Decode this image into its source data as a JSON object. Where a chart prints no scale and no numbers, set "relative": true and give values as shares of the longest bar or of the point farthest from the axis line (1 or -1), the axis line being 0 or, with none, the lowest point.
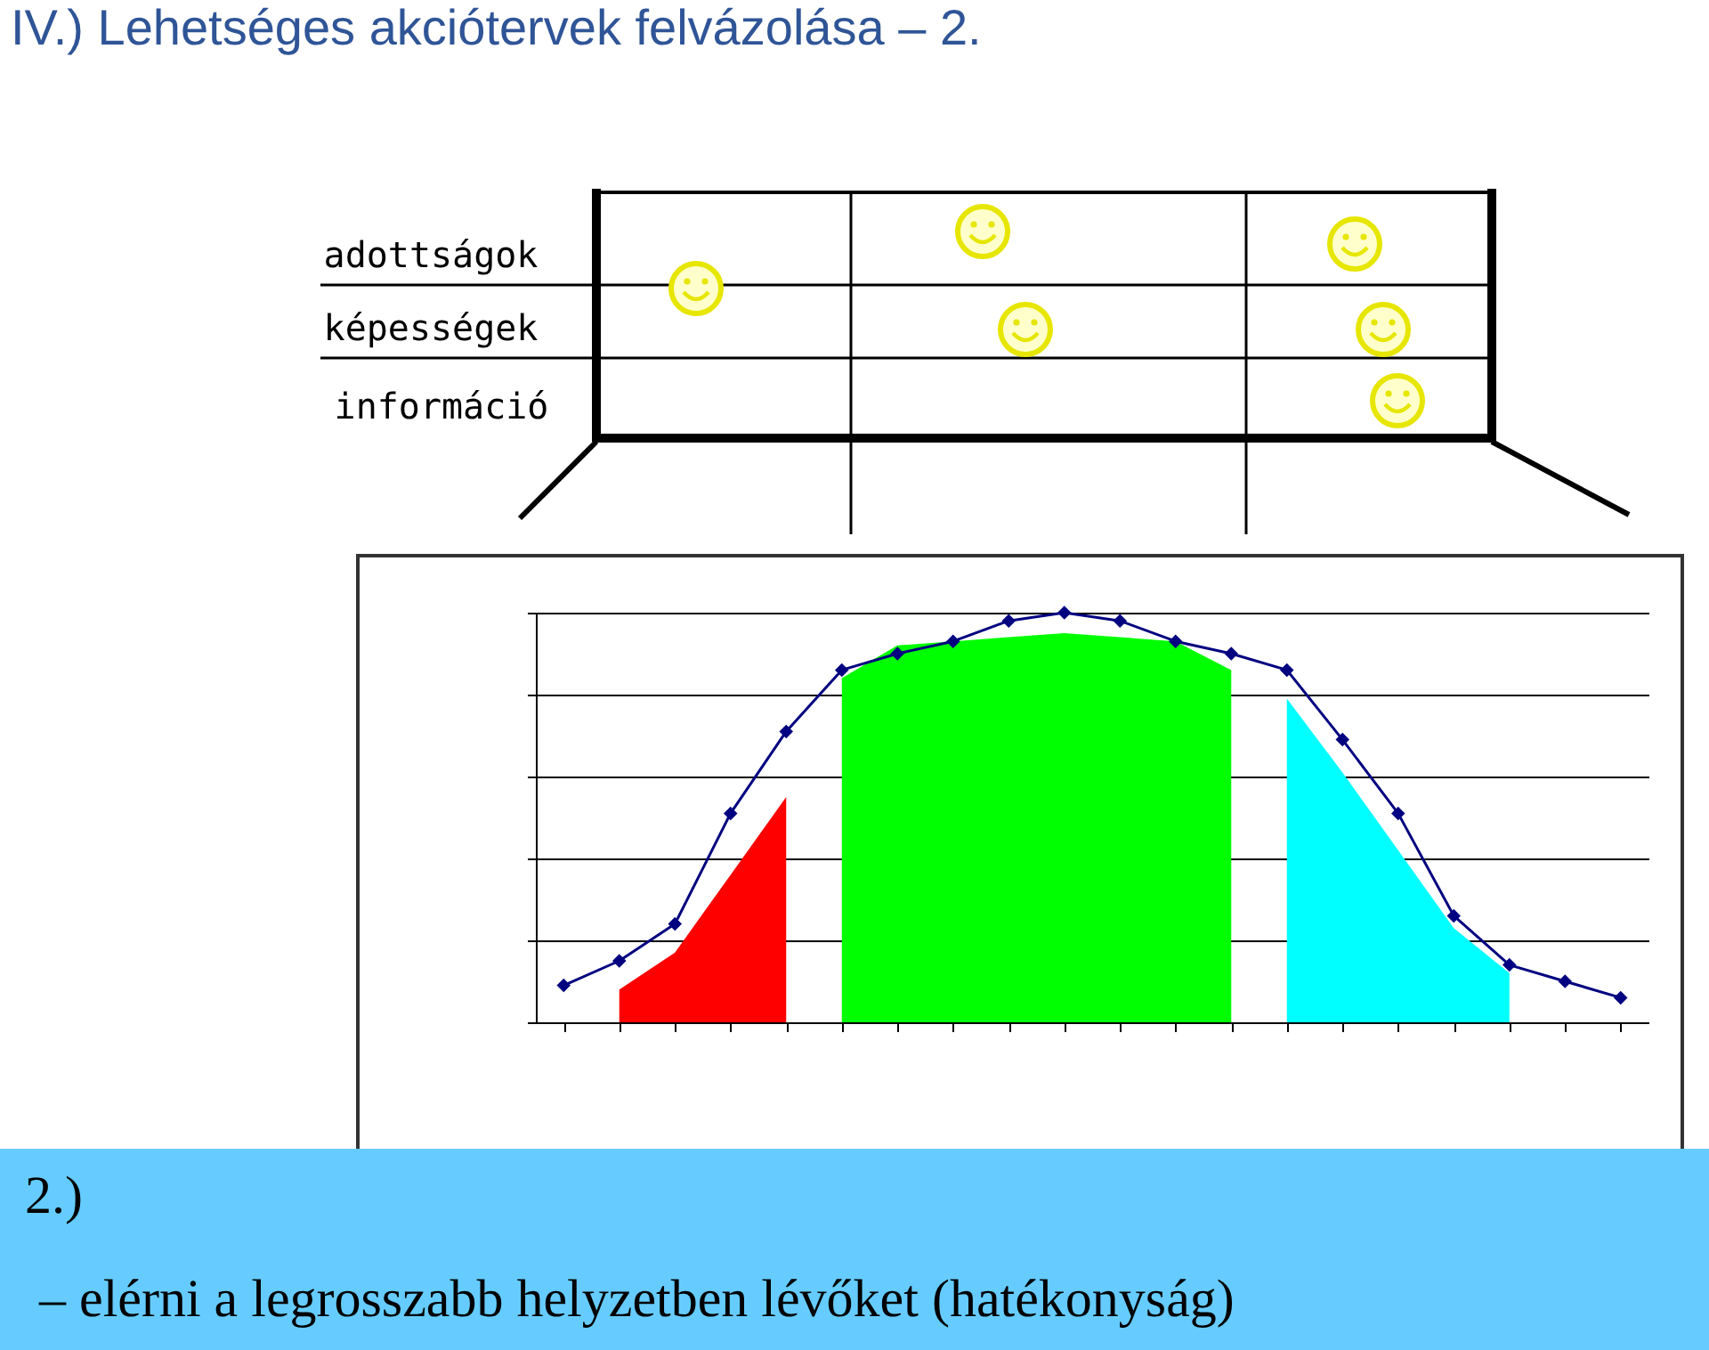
{
  "chart_data": {
    "type": "line",
    "title": "IV.) Lehetséges akciótervek felvázolása – 2.",
    "annotations": [
      "adottságok",
      "képességek",
      "információ",
      "2.)",
      "– elérni a legrosszabb helyzetben lévőket (hatékonyság)"
    ],
    "categories": [
      null,
      null,
      null,
      null,
      null,
      null,
      null,
      null,
      null,
      null,
      null,
      null,
      null,
      null,
      null,
      null,
      null,
      null,
      null,
      null
    ],
    "relative": true,
    "grid": "y",
    "series": [
      {
        "type": "area",
        "color": "#ff0000",
        "values": [
          null,
          0.08,
          0.17,
          0.36,
          0.55,
          null,
          null,
          null,
          null,
          null,
          null,
          null,
          null,
          null,
          null,
          null,
          null,
          null,
          null,
          null
        ]
      },
      {
        "type": "area",
        "color": "#00ff00",
        "values": [
          null,
          null,
          null,
          null,
          null,
          0.84,
          0.92,
          0.93,
          0.94,
          0.95,
          0.94,
          0.93,
          0.86,
          null,
          null,
          null,
          null,
          null,
          null,
          null
        ]
      },
      {
        "type": "area",
        "color": "#00ffff",
        "values": [
          null,
          null,
          null,
          null,
          null,
          null,
          null,
          null,
          null,
          null,
          null,
          null,
          null,
          0.79,
          0.61,
          0.42,
          0.23,
          0.12,
          null,
          null
        ]
      },
      {
        "color": "#000080",
        "marker": "diamond",
        "line_style": "solid",
        "values": [
          0.09,
          0.15,
          0.24,
          0.51,
          0.71,
          0.86,
          0.9,
          0.93,
          0.98,
          1,
          0.98,
          0.93,
          0.9,
          0.86,
          0.69,
          0.51,
          0.26,
          0.14,
          0.1,
          0.06
        ]
      }
    ]
  }
}
